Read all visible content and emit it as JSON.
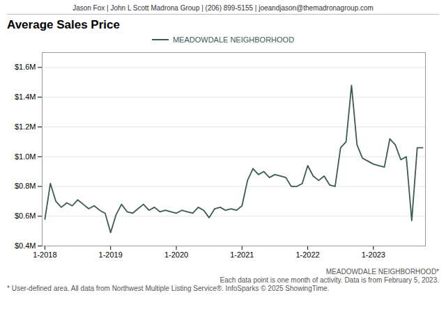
{
  "chart_data": {
    "type": "line",
    "header": "Jason Fox | John L Scott Madrona Group | (206) 899-5155 | joeandjason@themadronagroup.com",
    "title": "Average Sales Price",
    "x": [
      0,
      1,
      2,
      3,
      4,
      5,
      6,
      7,
      8,
      9,
      10,
      11,
      12,
      13,
      14,
      15,
      16,
      17,
      18,
      19,
      20,
      21,
      22,
      23,
      24,
      25,
      26,
      27,
      28,
      29,
      30,
      31,
      32,
      33,
      34,
      35,
      36,
      37,
      38,
      39,
      40,
      41,
      42,
      43,
      44,
      45,
      46,
      47,
      48,
      49,
      50,
      51,
      52,
      53,
      54,
      55,
      56,
      57,
      58,
      59,
      60,
      61,
      62,
      63,
      64,
      65,
      66,
      67,
      68,
      69
    ],
    "series": [
      {
        "name": "MEADOWDALE NEIGHBORHOOD",
        "color": "#3a5a54",
        "values": [
          580000,
          820000,
          700000,
          660000,
          690000,
          670000,
          710000,
          680000,
          650000,
          670000,
          640000,
          620000,
          490000,
          610000,
          680000,
          630000,
          620000,
          650000,
          680000,
          640000,
          660000,
          630000,
          640000,
          630000,
          620000,
          640000,
          630000,
          620000,
          660000,
          640000,
          590000,
          650000,
          660000,
          640000,
          650000,
          640000,
          670000,
          840000,
          920000,
          880000,
          900000,
          860000,
          880000,
          870000,
          860000,
          800000,
          800000,
          820000,
          940000,
          870000,
          840000,
          870000,
          810000,
          800000,
          1060000,
          1100000,
          1480000,
          1080000,
          990000,
          970000,
          950000,
          940000,
          930000,
          1120000,
          1080000,
          980000,
          1000000,
          570000,
          1060000,
          1060000
        ]
      }
    ],
    "xlim": [
      -0.5,
      69.5
    ],
    "xticks": [
      {
        "value": 0,
        "label": "1-2018"
      },
      {
        "value": 12,
        "label": "1-2019"
      },
      {
        "value": 24,
        "label": "1-2020"
      },
      {
        "value": 36,
        "label": "1-2021"
      },
      {
        "value": 48,
        "label": "1-2022"
      },
      {
        "value": 60,
        "label": "1-2023"
      }
    ],
    "ylim": [
      400000,
      1700000
    ],
    "yticks": [
      {
        "value": 400000,
        "label": "$0.4M"
      },
      {
        "value": 600000,
        "label": "$0.6M"
      },
      {
        "value": 800000,
        "label": "$0.8M"
      },
      {
        "value": 1000000,
        "label": "$1.0M"
      },
      {
        "value": 1200000,
        "label": "$1.2M"
      },
      {
        "value": 1400000,
        "label": "$1.4M"
      },
      {
        "value": 1600000,
        "label": "$1.6M"
      }
    ],
    "grid": true,
    "legend": "top",
    "annotations": [
      "MEADOWDALE NEIGHBORHOOD*",
      "Each data point is one month of activity. Data is from February 5, 2023.",
      "* User-defined area. All data from Northwest Multiple Listing Service®. InfoSparks © 2025 ShowingTime."
    ]
  }
}
